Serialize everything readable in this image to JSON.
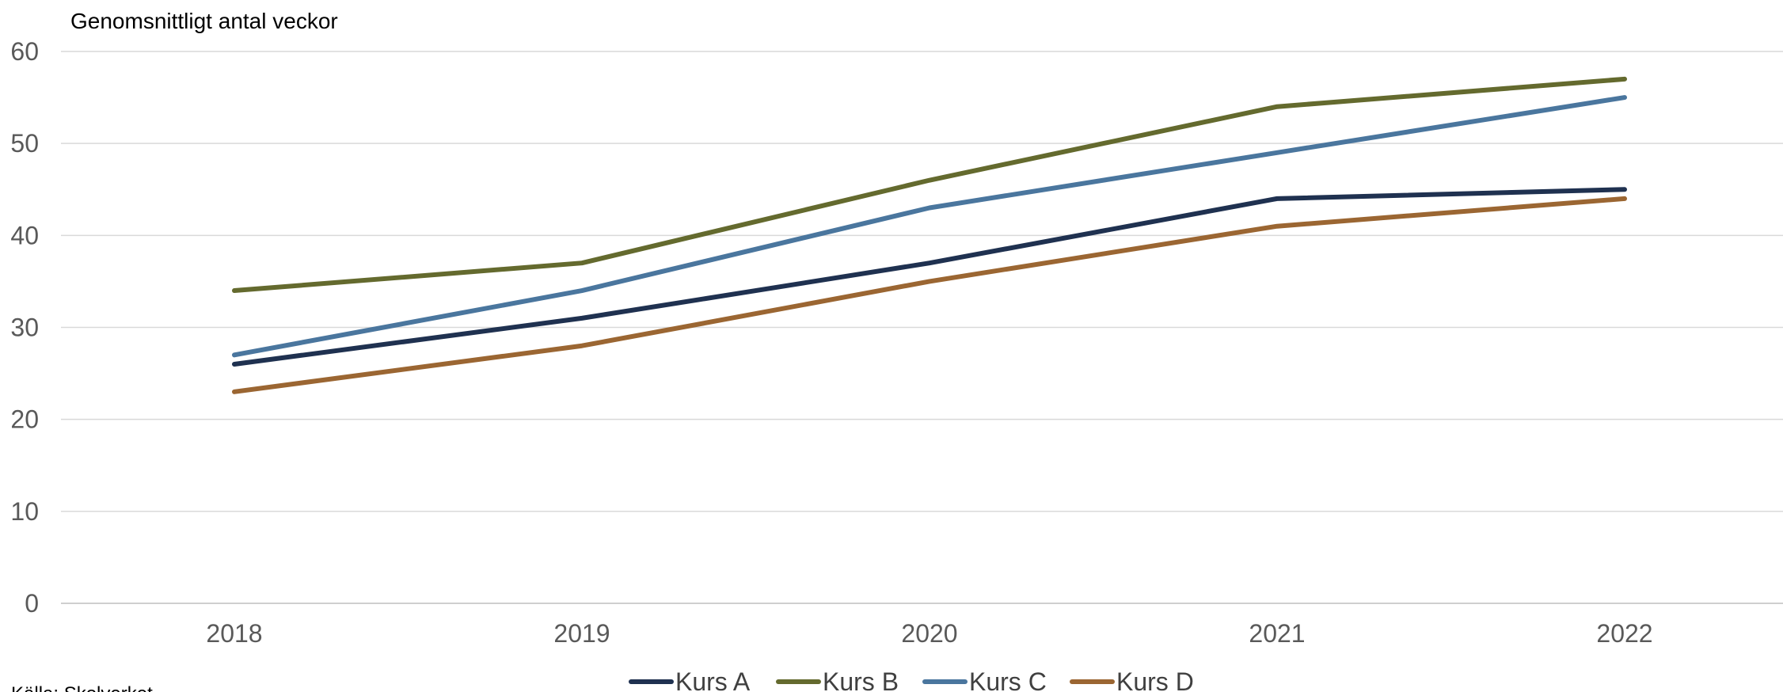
{
  "chart_data": {
    "type": "line",
    "ylabel": "Genomsnittligt antal veckor",
    "xlabel": "",
    "categories": [
      "2018",
      "2019",
      "2020",
      "2021",
      "2022"
    ],
    "ylim": [
      0,
      60
    ],
    "yticks": [
      0,
      10,
      20,
      30,
      40,
      50,
      60
    ],
    "grid": true,
    "legend_position": "bottom",
    "series": [
      {
        "name": "Kurs A",
        "color": "#1f3150",
        "values": [
          26,
          31,
          37,
          44,
          45
        ]
      },
      {
        "name": "Kurs B",
        "color": "#646a2e",
        "values": [
          34,
          37,
          46,
          54,
          57
        ]
      },
      {
        "name": "Kurs C",
        "color": "#4a769e",
        "values": [
          27,
          34,
          43,
          49,
          55
        ]
      },
      {
        "name": "Kurs D",
        "color": "#9b6632",
        "values": [
          23,
          28,
          35,
          41,
          44
        ]
      }
    ]
  },
  "source": "Källa: Skolverket"
}
